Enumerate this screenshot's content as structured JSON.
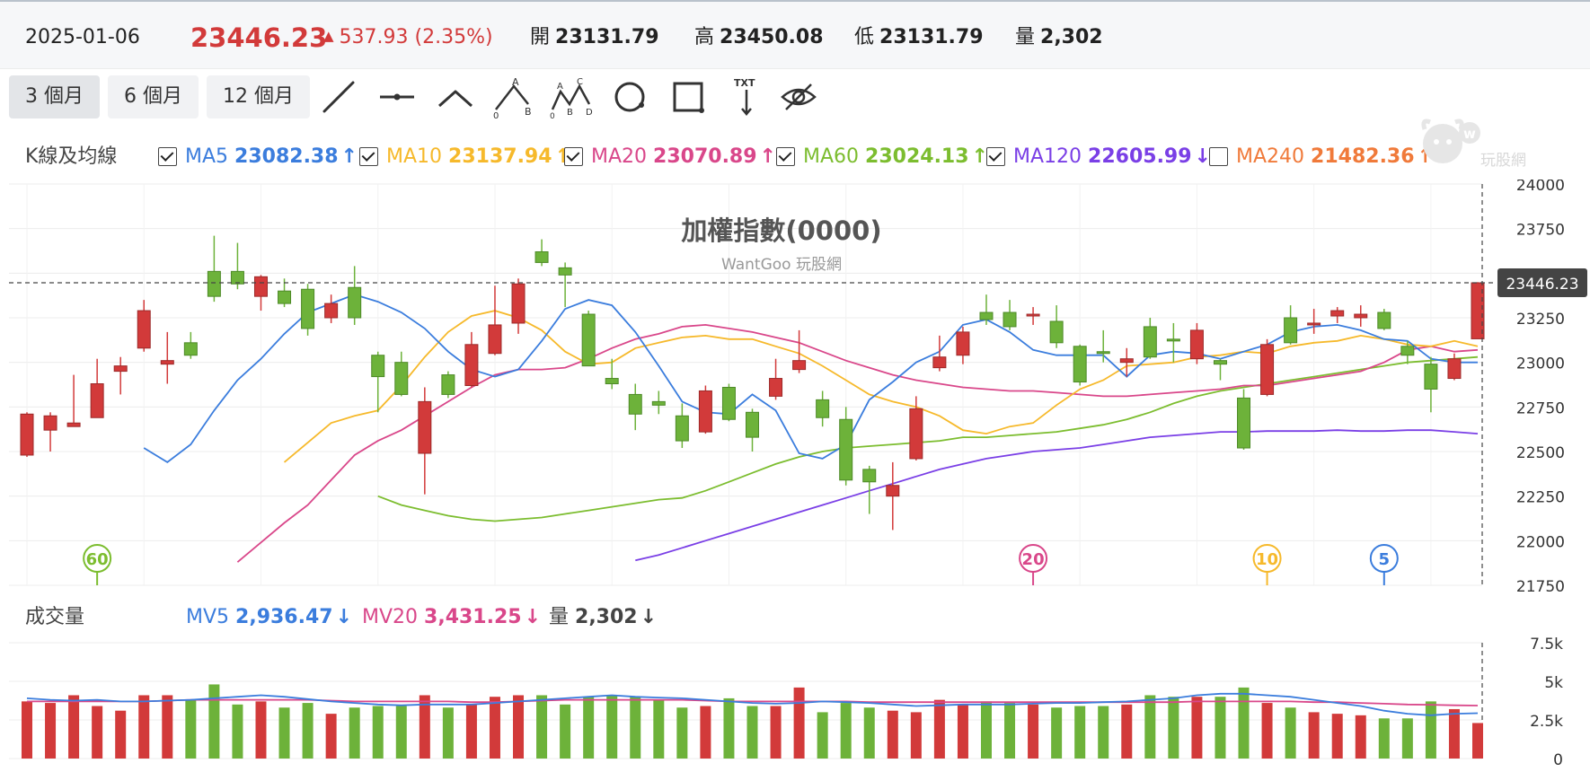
{
  "header": {
    "date": "2025-01-06",
    "price": "23446.23",
    "change": "537.93 (2.35%)",
    "open_label": "開",
    "open": "23131.79",
    "high_label": "高",
    "high": "23450.08",
    "low_label": "低",
    "low": "23131.79",
    "vol_label": "量",
    "vol": "2,302"
  },
  "periods": [
    "3 個月",
    "6 個月",
    "12 個月"
  ],
  "active_period": 0,
  "tools": [
    "line-tool-icon",
    "horizontal-line-tool-icon",
    "angle-tool-icon",
    "abc-wave-tool-icon",
    "abcd-wave-tool-icon",
    "circle-tool-icon",
    "rectangle-tool-icon",
    "text-tool-icon",
    "hide-drawings-icon"
  ],
  "legend": {
    "title": "K線及均線",
    "items": [
      {
        "name": "MA5",
        "value": "23082.38",
        "dir": "up",
        "checked": true,
        "color": "#3b7ddd"
      },
      {
        "name": "MA10",
        "value": "23137.94",
        "dir": "up",
        "checked": true,
        "color": "#f6b92b"
      },
      {
        "name": "MA20",
        "value": "23070.89",
        "dir": "up",
        "checked": true,
        "color": "#d9478a"
      },
      {
        "name": "MA60",
        "value": "23024.13",
        "dir": "up",
        "checked": true,
        "color": "#7cbd2f"
      },
      {
        "name": "MA120",
        "value": "22605.99",
        "dir": "down",
        "checked": true,
        "color": "#7a3fe6"
      },
      {
        "name": "MA240",
        "value": "21482.36",
        "dir": "up",
        "checked": false,
        "color": "#f07a3a"
      }
    ]
  },
  "vol_legend": {
    "title": "成交量",
    "items": [
      {
        "name": "MV5",
        "value": "2,936.47",
        "dir": "down",
        "color": "#3b7ddd"
      },
      {
        "name": "MV20",
        "value": "3,431.25",
        "dir": "down",
        "color": "#d9478a"
      },
      {
        "name": "量",
        "value": "2,302",
        "dir": "down",
        "color": "#444"
      }
    ]
  },
  "watermark": {
    "title": "加權指數(0000)",
    "subtitle": "WantGoo 玩股網",
    "logo_text": "玩股網"
  },
  "colors": {
    "up": "#d23a3a",
    "down": "#6db23a",
    "grid": "#ececec"
  },
  "chart_data": {
    "type": "candlestick",
    "y_ticks": [
      24000,
      23750,
      23500,
      23250,
      23000,
      22750,
      22500,
      22250,
      22000,
      21750
    ],
    "ylim": [
      21750,
      24000
    ],
    "last_price_label": "23446.23",
    "candles": [
      {
        "o": 22480,
        "c": 22710,
        "h": 22720,
        "l": 22470
      },
      {
        "o": 22620,
        "c": 22700,
        "h": 22720,
        "l": 22500
      },
      {
        "o": 22640,
        "c": 22660,
        "h": 22930,
        "l": 22640
      },
      {
        "o": 22690,
        "c": 22880,
        "h": 23020,
        "l": 22690
      },
      {
        "o": 22950,
        "c": 22980,
        "h": 23030,
        "l": 22820
      },
      {
        "o": 23080,
        "c": 23290,
        "h": 23350,
        "l": 23060
      },
      {
        "o": 22990,
        "c": 23010,
        "h": 23170,
        "l": 22880
      },
      {
        "o": 23110,
        "c": 23040,
        "h": 23170,
        "l": 23020
      },
      {
        "o": 23510,
        "c": 23370,
        "h": 23710,
        "l": 23340
      },
      {
        "o": 23510,
        "c": 23440,
        "h": 23670,
        "l": 23410
      },
      {
        "o": 23370,
        "c": 23480,
        "h": 23490,
        "l": 23290
      },
      {
        "o": 23400,
        "c": 23330,
        "h": 23470,
        "l": 23310
      },
      {
        "o": 23410,
        "c": 23190,
        "h": 23440,
        "l": 23150
      },
      {
        "o": 23250,
        "c": 23330,
        "h": 23380,
        "l": 23220
      },
      {
        "o": 23420,
        "c": 23250,
        "h": 23540,
        "l": 23210
      },
      {
        "o": 23040,
        "c": 22920,
        "h": 23060,
        "l": 22720
      },
      {
        "o": 23000,
        "c": 22820,
        "h": 23060,
        "l": 22810
      },
      {
        "o": 22490,
        "c": 22780,
        "h": 22860,
        "l": 22260
      },
      {
        "o": 22930,
        "c": 22820,
        "h": 22950,
        "l": 22800
      },
      {
        "o": 22870,
        "c": 23100,
        "h": 23170,
        "l": 22860
      },
      {
        "o": 23050,
        "c": 23210,
        "h": 23430,
        "l": 23040
      },
      {
        "o": 23220,
        "c": 23440,
        "h": 23470,
        "l": 23160
      },
      {
        "o": 23620,
        "c": 23560,
        "h": 23690,
        "l": 23540
      },
      {
        "o": 23530,
        "c": 23490,
        "h": 23560,
        "l": 23310
      },
      {
        "o": 23270,
        "c": 22980,
        "h": 23290,
        "l": 22980
      },
      {
        "o": 22910,
        "c": 22880,
        "h": 23020,
        "l": 22850
      },
      {
        "o": 22820,
        "c": 22710,
        "h": 22880,
        "l": 22620
      },
      {
        "o": 22780,
        "c": 22760,
        "h": 22840,
        "l": 22710
      },
      {
        "o": 22700,
        "c": 22560,
        "h": 22770,
        "l": 22520
      },
      {
        "o": 22610,
        "c": 22840,
        "h": 22870,
        "l": 22600
      },
      {
        "o": 22860,
        "c": 22680,
        "h": 22880,
        "l": 22670
      },
      {
        "o": 22720,
        "c": 22580,
        "h": 22740,
        "l": 22500
      },
      {
        "o": 22810,
        "c": 22910,
        "h": 23020,
        "l": 22790
      },
      {
        "o": 22960,
        "c": 23010,
        "h": 23180,
        "l": 22940
      },
      {
        "o": 22790,
        "c": 22690,
        "h": 22840,
        "l": 22640
      },
      {
        "o": 22680,
        "c": 22340,
        "h": 22750,
        "l": 22310
      },
      {
        "o": 22400,
        "c": 22330,
        "h": 22420,
        "l": 22150
      },
      {
        "o": 22250,
        "c": 22310,
        "h": 22440,
        "l": 22060
      },
      {
        "o": 22460,
        "c": 22740,
        "h": 22810,
        "l": 22450
      },
      {
        "o": 22970,
        "c": 23030,
        "h": 23150,
        "l": 22950
      },
      {
        "o": 23040,
        "c": 23170,
        "h": 23200,
        "l": 22990
      },
      {
        "o": 23280,
        "c": 23240,
        "h": 23380,
        "l": 23210
      },
      {
        "o": 23280,
        "c": 23200,
        "h": 23350,
        "l": 23180
      },
      {
        "o": 23270,
        "c": 23270,
        "h": 23310,
        "l": 23210
      },
      {
        "o": 23230,
        "c": 23110,
        "h": 23320,
        "l": 23080
      },
      {
        "o": 23090,
        "c": 22890,
        "h": 23100,
        "l": 22870
      },
      {
        "o": 23060,
        "c": 23050,
        "h": 23180,
        "l": 23000
      },
      {
        "o": 23000,
        "c": 23020,
        "h": 23080,
        "l": 22920
      },
      {
        "o": 23200,
        "c": 23030,
        "h": 23250,
        "l": 23020
      },
      {
        "o": 23130,
        "c": 23120,
        "h": 23220,
        "l": 23000
      },
      {
        "o": 23020,
        "c": 23180,
        "h": 23220,
        "l": 22990
      },
      {
        "o": 23010,
        "c": 22990,
        "h": 23020,
        "l": 22900
      },
      {
        "o": 22800,
        "c": 22520,
        "h": 22850,
        "l": 22510
      },
      {
        "o": 22820,
        "c": 23100,
        "h": 23130,
        "l": 22810
      },
      {
        "o": 23250,
        "c": 23110,
        "h": 23320,
        "l": 23100
      },
      {
        "o": 23220,
        "c": 23220,
        "h": 23300,
        "l": 23160
      },
      {
        "o": 23260,
        "c": 23290,
        "h": 23310,
        "l": 23220
      },
      {
        "o": 23250,
        "c": 23270,
        "h": 23320,
        "l": 23200
      },
      {
        "o": 23280,
        "c": 23190,
        "h": 23300,
        "l": 23180
      },
      {
        "o": 23090,
        "c": 23040,
        "h": 23120,
        "l": 22990
      },
      {
        "o": 22990,
        "c": 22850,
        "h": 23030,
        "l": 22720
      },
      {
        "o": 22910,
        "c": 23020,
        "h": 23050,
        "l": 22900
      },
      {
        "o": 23132,
        "c": 23446,
        "h": 23450,
        "l": 23132
      }
    ],
    "ma5": [
      22520,
      22440,
      22540,
      22730,
      22900,
      23020,
      23160,
      23280,
      23330,
      23380,
      23340,
      23280,
      23190,
      23060,
      22960,
      22920,
      22960,
      23120,
      23300,
      23350,
      23320,
      23170,
      22980,
      22780,
      22720,
      22710,
      22820,
      22730,
      22490,
      22460,
      22540,
      22790,
      22890,
      23000,
      23060,
      23210,
      23240,
      23170,
      23070,
      23040,
      23040,
      23040,
      22920,
      23040,
      23060,
      23050,
      23020,
      23060,
      23100,
      23170,
      23200,
      23210,
      23180,
      23130,
      23120,
      23020,
      23000,
      23000
    ],
    "ma10": [
      22440,
      22550,
      22660,
      22700,
      22730,
      22870,
      23030,
      23170,
      23260,
      23290,
      23250,
      23180,
      23060,
      22990,
      23000,
      23080,
      23110,
      23140,
      23150,
      23130,
      23130,
      23090,
      23050,
      22980,
      22900,
      22820,
      22780,
      22750,
      22700,
      22620,
      22600,
      22640,
      22660,
      22760,
      22850,
      22900,
      22980,
      22990,
      23000,
      23030,
      23040,
      23060,
      23050,
      23090,
      23110,
      23120,
      23150,
      23130,
      23100,
      23090,
      23120,
      23090
    ],
    "ma20": [
      21880,
      21990,
      22100,
      22200,
      22340,
      22480,
      22560,
      22620,
      22700,
      22780,
      22860,
      22930,
      22960,
      22960,
      22970,
      23020,
      23080,
      23130,
      23160,
      23200,
      23210,
      23190,
      23170,
      23140,
      23110,
      23060,
      23010,
      22970,
      22930,
      22900,
      22880,
      22860,
      22850,
      22840,
      22840,
      22830,
      22820,
      22810,
      22810,
      22820,
      22830,
      22840,
      22850,
      22870,
      22870,
      22890,
      22910,
      22930,
      22950,
      23000,
      23070,
      23090,
      23060,
      23070
    ],
    "ma60": [
      22250,
      22200,
      22170,
      22140,
      22120,
      22110,
      22120,
      22130,
      22150,
      22170,
      22190,
      22210,
      22230,
      22240,
      22280,
      22330,
      22380,
      22430,
      22470,
      22500,
      22520,
      22530,
      22540,
      22550,
      22560,
      22580,
      22580,
      22590,
      22600,
      22610,
      22630,
      22650,
      22680,
      22720,
      22770,
      22810,
      22840,
      22860,
      22880,
      22900,
      22920,
      22940,
      22960,
      22980,
      23000,
      23010,
      23020,
      23030
    ],
    "ma120": [
      21890,
      21920,
      21960,
      22000,
      22040,
      22080,
      22120,
      22160,
      22200,
      22240,
      22280,
      22320,
      22360,
      22400,
      22430,
      22460,
      22480,
      22500,
      22510,
      22520,
      22540,
      22560,
      22580,
      22590,
      22600,
      22610,
      22610,
      22615,
      22615,
      22615,
      22620,
      22615,
      22615,
      22620,
      22620,
      22610,
      22600
    ],
    "period_markers": [
      {
        "label": "60",
        "index": 3,
        "color": "#7cbd2f"
      },
      {
        "label": "20",
        "index": 43,
        "color": "#d9478a"
      },
      {
        "label": "10",
        "index": 53,
        "color": "#f6b92b"
      },
      {
        "label": "5",
        "index": 58,
        "color": "#3b7ddd"
      }
    ],
    "volume": {
      "y_ticks": [
        "7.5k",
        "5k",
        "2.5k",
        "0"
      ],
      "ylim": [
        0,
        7500
      ],
      "values": [
        3700,
        3600,
        4100,
        3400,
        3100,
        4100,
        4100,
        3800,
        4800,
        3500,
        3700,
        3300,
        3600,
        2900,
        3300,
        3400,
        3400,
        4100,
        3300,
        3500,
        4000,
        4100,
        4100,
        3500,
        4000,
        4100,
        4000,
        3800,
        3300,
        3400,
        3900,
        3400,
        3400,
        4600,
        3000,
        3600,
        3300,
        3100,
        3000,
        3800,
        3500,
        3700,
        3600,
        3500,
        3300,
        3400,
        3400,
        3500,
        4100,
        4000,
        4000,
        4000,
        4600,
        3600,
        3300,
        3000,
        2900,
        2800,
        2600,
        2600,
        3700,
        3200,
        2300
      ],
      "mv5": [
        3900,
        3800,
        3750,
        3800,
        3700,
        3700,
        3750,
        3800,
        3900,
        4000,
        4100,
        4000,
        3850,
        3700,
        3600,
        3500,
        3450,
        3500,
        3500,
        3500,
        3600,
        3700,
        3800,
        3900,
        4000,
        4100,
        4000,
        3950,
        3900,
        3800,
        3700,
        3600,
        3550,
        3600,
        3700,
        3650,
        3600,
        3500,
        3400,
        3450,
        3500,
        3500,
        3500,
        3550,
        3600,
        3600,
        3650,
        3700,
        3800,
        3900,
        4100,
        4200,
        4200,
        4100,
        4000,
        3800,
        3600,
        3400,
        3100,
        2900,
        2800,
        2900,
        2936
      ],
      "mv20": [
        3700,
        3700,
        3700,
        3700,
        3700,
        3700,
        3750,
        3800,
        3800,
        3800,
        3800,
        3800,
        3800,
        3750,
        3700,
        3700,
        3700,
        3700,
        3700,
        3650,
        3650,
        3700,
        3750,
        3800,
        3800,
        3800,
        3800,
        3800,
        3800,
        3750,
        3700,
        3700,
        3700,
        3700,
        3700,
        3700,
        3650,
        3650,
        3650,
        3650,
        3650,
        3650,
        3650,
        3650,
        3650,
        3650,
        3650,
        3650,
        3650,
        3650,
        3700,
        3700,
        3700,
        3700,
        3700,
        3650,
        3650,
        3600,
        3550,
        3500,
        3480,
        3450,
        3431
      ]
    }
  }
}
